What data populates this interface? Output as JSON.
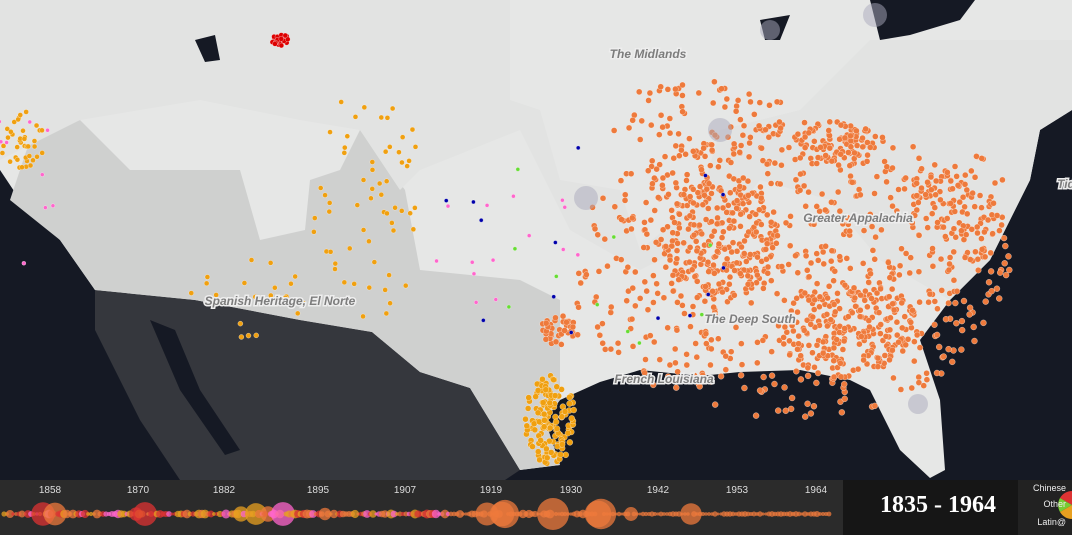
{
  "map_labels": [
    "The Midlands",
    "Greater Appalachia",
    "Spanish Heritage, El Norte",
    "The Deep South",
    "French Louisiana",
    "Tid"
  ],
  "timeline": {
    "ticks": [
      "1858",
      "1870",
      "1882",
      "1895",
      "1907",
      "1919",
      "1930",
      "1942",
      "1953",
      "1964"
    ]
  },
  "range": "1835 - 1964",
  "legend": [
    "Chinese",
    "Other",
    "Latin@"
  ]
}
